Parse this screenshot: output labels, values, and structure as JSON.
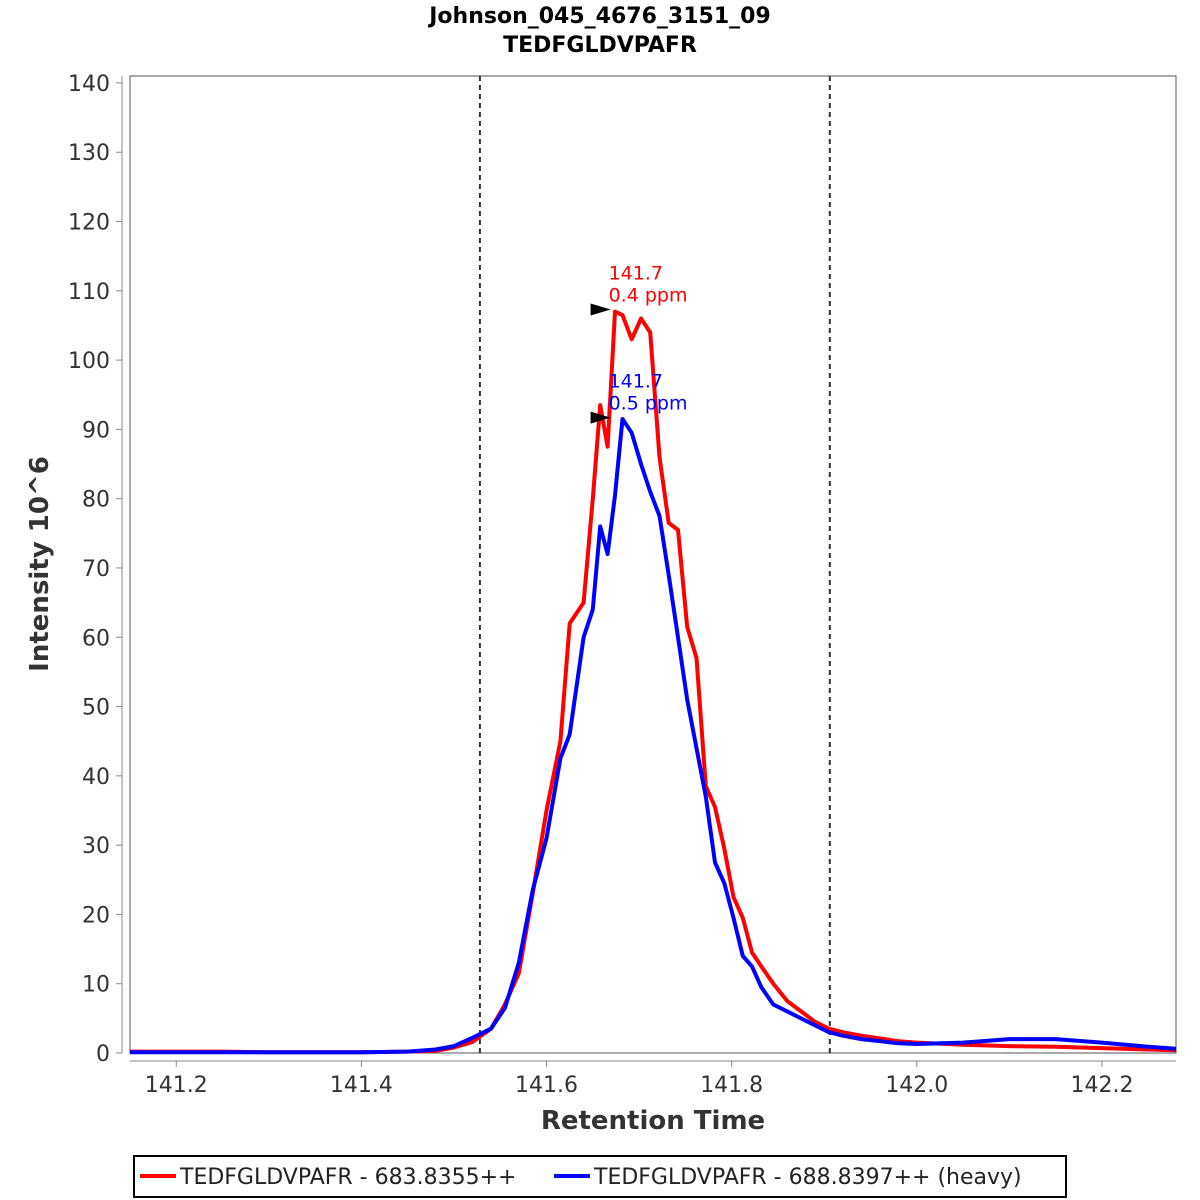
{
  "chart_data": {
    "type": "line",
    "title": "Johnson_045_4676_3151_09",
    "subtitle": "TEDFGLDVPAFR",
    "xlabel": "Retention Time",
    "ylabel": "Intensity 10^6",
    "xlim": [
      141.15,
      142.28
    ],
    "ylim": [
      0,
      141
    ],
    "x_ticks": [
      "141.2",
      "141.4",
      "141.6",
      "141.8",
      "142.0",
      "142.2"
    ],
    "y_ticks": [
      "0",
      "10",
      "20",
      "30",
      "40",
      "50",
      "60",
      "70",
      "80",
      "90",
      "100",
      "110",
      "120",
      "130",
      "140"
    ],
    "grid": false,
    "legend_position": "bottom",
    "boundaries": [
      141.528,
      141.906
    ],
    "series": [
      {
        "name": "TEDFGLDVPAFR - 683.8355++",
        "color": "#ff0000",
        "x": [
          141.15,
          141.2,
          141.25,
          141.3,
          141.35,
          141.4,
          141.45,
          141.48,
          141.5,
          141.52,
          141.54,
          141.555,
          141.57,
          141.585,
          141.6,
          141.615,
          141.625,
          141.64,
          141.65,
          141.658,
          141.666,
          141.674,
          141.682,
          141.692,
          141.702,
          141.712,
          141.722,
          141.732,
          141.742,
          141.752,
          141.762,
          141.772,
          141.782,
          141.792,
          141.802,
          141.812,
          141.822,
          141.832,
          141.845,
          141.86,
          141.875,
          141.89,
          141.905,
          141.92,
          141.94,
          141.96,
          141.98,
          142.0,
          142.05,
          142.1,
          142.15,
          142.2,
          142.25,
          142.28
        ],
        "y": [
          0.2,
          0.2,
          0.2,
          0.1,
          0.1,
          0.1,
          0.2,
          0.3,
          0.8,
          1.6,
          3.5,
          7.0,
          11.5,
          23.0,
          35.0,
          45.0,
          62.0,
          65.0,
          80.0,
          93.5,
          87.5,
          107.0,
          106.5,
          103.0,
          106.0,
          104.0,
          86.0,
          76.5,
          75.5,
          61.5,
          57.0,
          38.5,
          35.5,
          29.5,
          22.5,
          19.5,
          14.5,
          12.5,
          10.0,
          7.5,
          6.0,
          4.5,
          3.5,
          3.0,
          2.5,
          2.1,
          1.7,
          1.5,
          1.2,
          1.0,
          0.9,
          0.7,
          0.5,
          0.4
        ]
      },
      {
        "name": "TEDFGLDVPAFR - 688.8397++ (heavy)",
        "color": "#0000ff",
        "x": [
          141.15,
          141.2,
          141.25,
          141.3,
          141.35,
          141.4,
          141.45,
          141.48,
          141.5,
          141.52,
          141.54,
          141.555,
          141.57,
          141.585,
          141.6,
          141.615,
          141.625,
          141.64,
          141.65,
          141.658,
          141.666,
          141.674,
          141.682,
          141.692,
          141.702,
          141.712,
          141.722,
          141.732,
          141.742,
          141.752,
          141.762,
          141.772,
          141.782,
          141.792,
          141.802,
          141.812,
          141.822,
          141.832,
          141.845,
          141.86,
          141.875,
          141.89,
          141.905,
          141.92,
          141.94,
          141.96,
          141.98,
          142.0,
          142.05,
          142.1,
          142.15,
          142.2,
          142.25,
          142.28
        ],
        "y": [
          0.1,
          0.1,
          0.1,
          0.1,
          0.1,
          0.1,
          0.2,
          0.5,
          1.0,
          2.2,
          3.5,
          6.5,
          13.0,
          23.5,
          31.0,
          42.5,
          46.0,
          60.0,
          64.0,
          76.0,
          72.0,
          80.5,
          91.5,
          89.5,
          85.0,
          81.0,
          77.5,
          69.0,
          60.0,
          51.0,
          44.0,
          37.0,
          27.5,
          24.5,
          19.5,
          14.0,
          12.5,
          9.5,
          7.0,
          6.0,
          5.0,
          4.0,
          3.0,
          2.5,
          2.0,
          1.7,
          1.4,
          1.3,
          1.5,
          2.0,
          2.0,
          1.5,
          0.9,
          0.6
        ]
      }
    ],
    "annotations": [
      {
        "series": 0,
        "x": 141.68,
        "y": 107.3,
        "lines": [
          "141.7",
          "0.4 ppm"
        ],
        "color": "#ff0000"
      },
      {
        "series": 1,
        "x": 141.68,
        "y": 91.7,
        "lines": [
          "141.7",
          "0.5 ppm"
        ],
        "color": "#0000ff"
      }
    ]
  }
}
